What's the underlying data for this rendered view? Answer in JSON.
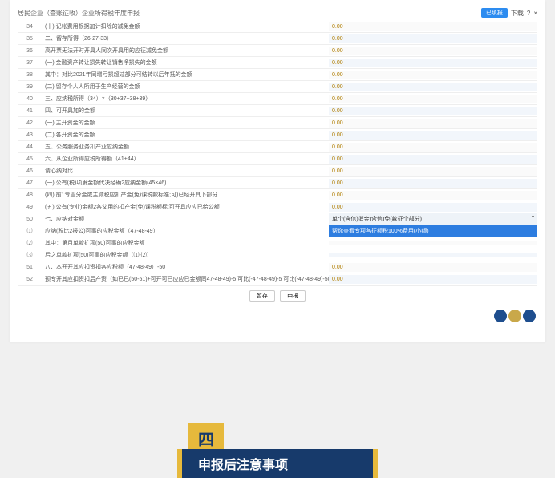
{
  "header": {
    "title": "居民企业（查账征收）企业所得税年度申报",
    "create_btn": "已填报",
    "reset": "下载",
    "help_icon": "?",
    "close_icon": "×"
  },
  "rows": [
    {
      "n": "34",
      "label": "(十) 记帐费用根据加计扣除的减免金额",
      "val": "0.00",
      "alt": false
    },
    {
      "n": "35",
      "label": "二、留存所得（26-27-33）",
      "val": "0.00",
      "alt": true
    },
    {
      "n": "36",
      "label": "高开票无法开时开具人同次开具用的应征减免金额",
      "val": "0.00",
      "alt": false
    },
    {
      "n": "37",
      "label": "(一) 金融资产转让损失转让销售净损失的金额",
      "val": "0.00",
      "alt": true
    },
    {
      "n": "38",
      "label": "其中：对比2021年同增亏损超过部分可结转以后年抵的金额",
      "val": "0.00",
      "alt": false
    },
    {
      "n": "39",
      "label": "(二) 留存个人人所用于生产经营的金额",
      "val": "0.00",
      "alt": true
    },
    {
      "n": "40",
      "label": "三、应纳税所得（34）×（30+37+38+39）",
      "val": "0.00",
      "alt": false
    },
    {
      "n": "41",
      "label": "四、可开具加的金额",
      "val": "0.00",
      "alt": true
    },
    {
      "n": "42",
      "label": "(一) 主开资金的金额",
      "val": "0.00",
      "alt": false
    },
    {
      "n": "43",
      "label": "(二) 各开资金的金额",
      "val": "0.00",
      "alt": true
    },
    {
      "n": "44",
      "label": "五、公务服务业务扣产业应纳金额",
      "val": "0.00",
      "alt": false
    },
    {
      "n": "45",
      "label": "六、从企业所得应税所得额（41+44）",
      "val": "0.00",
      "alt": true,
      "valClass": "alt"
    },
    {
      "n": "46",
      "label": "请心纳对比",
      "val": "0.00",
      "alt": false
    },
    {
      "n": "47",
      "label": "(一) 公有(税)项发金额代决经确2应纳金额(45×46)",
      "val": "0.00",
      "alt": true
    },
    {
      "n": "48",
      "label": "(四) 前1专业分金或主减税应扣产金(免)课税款标准;可)已经开具下部分",
      "val": "0.00",
      "alt": false
    },
    {
      "n": "49",
      "label": "(五) 公有(专业)金额2各父用的扣产金(免)课税额标;可开具应应已给公额",
      "val": "0.00",
      "alt": true
    },
    {
      "n": "50",
      "label": "七、应纳对金额",
      "val": "单个(含信)消金(含信)免(款征个部分)",
      "alt": false,
      "valClass": "dropdown"
    },
    {
      "n": "⑴",
      "label": "应纳(税比2报公)可事的应税金额（47-48-49）",
      "val": "帮你查看专项各征额税100%费用(小额)",
      "alt": true,
      "valClass": "highlight"
    },
    {
      "n": "⑵",
      "label": "其中：第月单款扩项(50)可事的应税金额",
      "val": "",
      "alt": false
    },
    {
      "n": "⑶",
      "label": "后之单款扩项(50)可事的应税金额（⑴-⑵）",
      "val": "",
      "alt": true
    },
    {
      "n": "51",
      "label": "八、本开开其应扣资扣各应税额（47-48-49）-50",
      "val": "0.00",
      "alt": false
    },
    {
      "n": "52",
      "label": "预专开其应扣资扣后产资（如已已(50-51)+可开可已应应已金额同47-48-49)-5 可比(-47-48-49)-5 可比(-47-48-49)-50-55-56",
      "val": "0.00",
      "alt": true
    }
  ],
  "footer": {
    "save": "暂存",
    "submit": "申报"
  },
  "dots": [
    "blue",
    "gold",
    "blue"
  ],
  "section": {
    "num": "四",
    "title": "申报后注意事项"
  }
}
